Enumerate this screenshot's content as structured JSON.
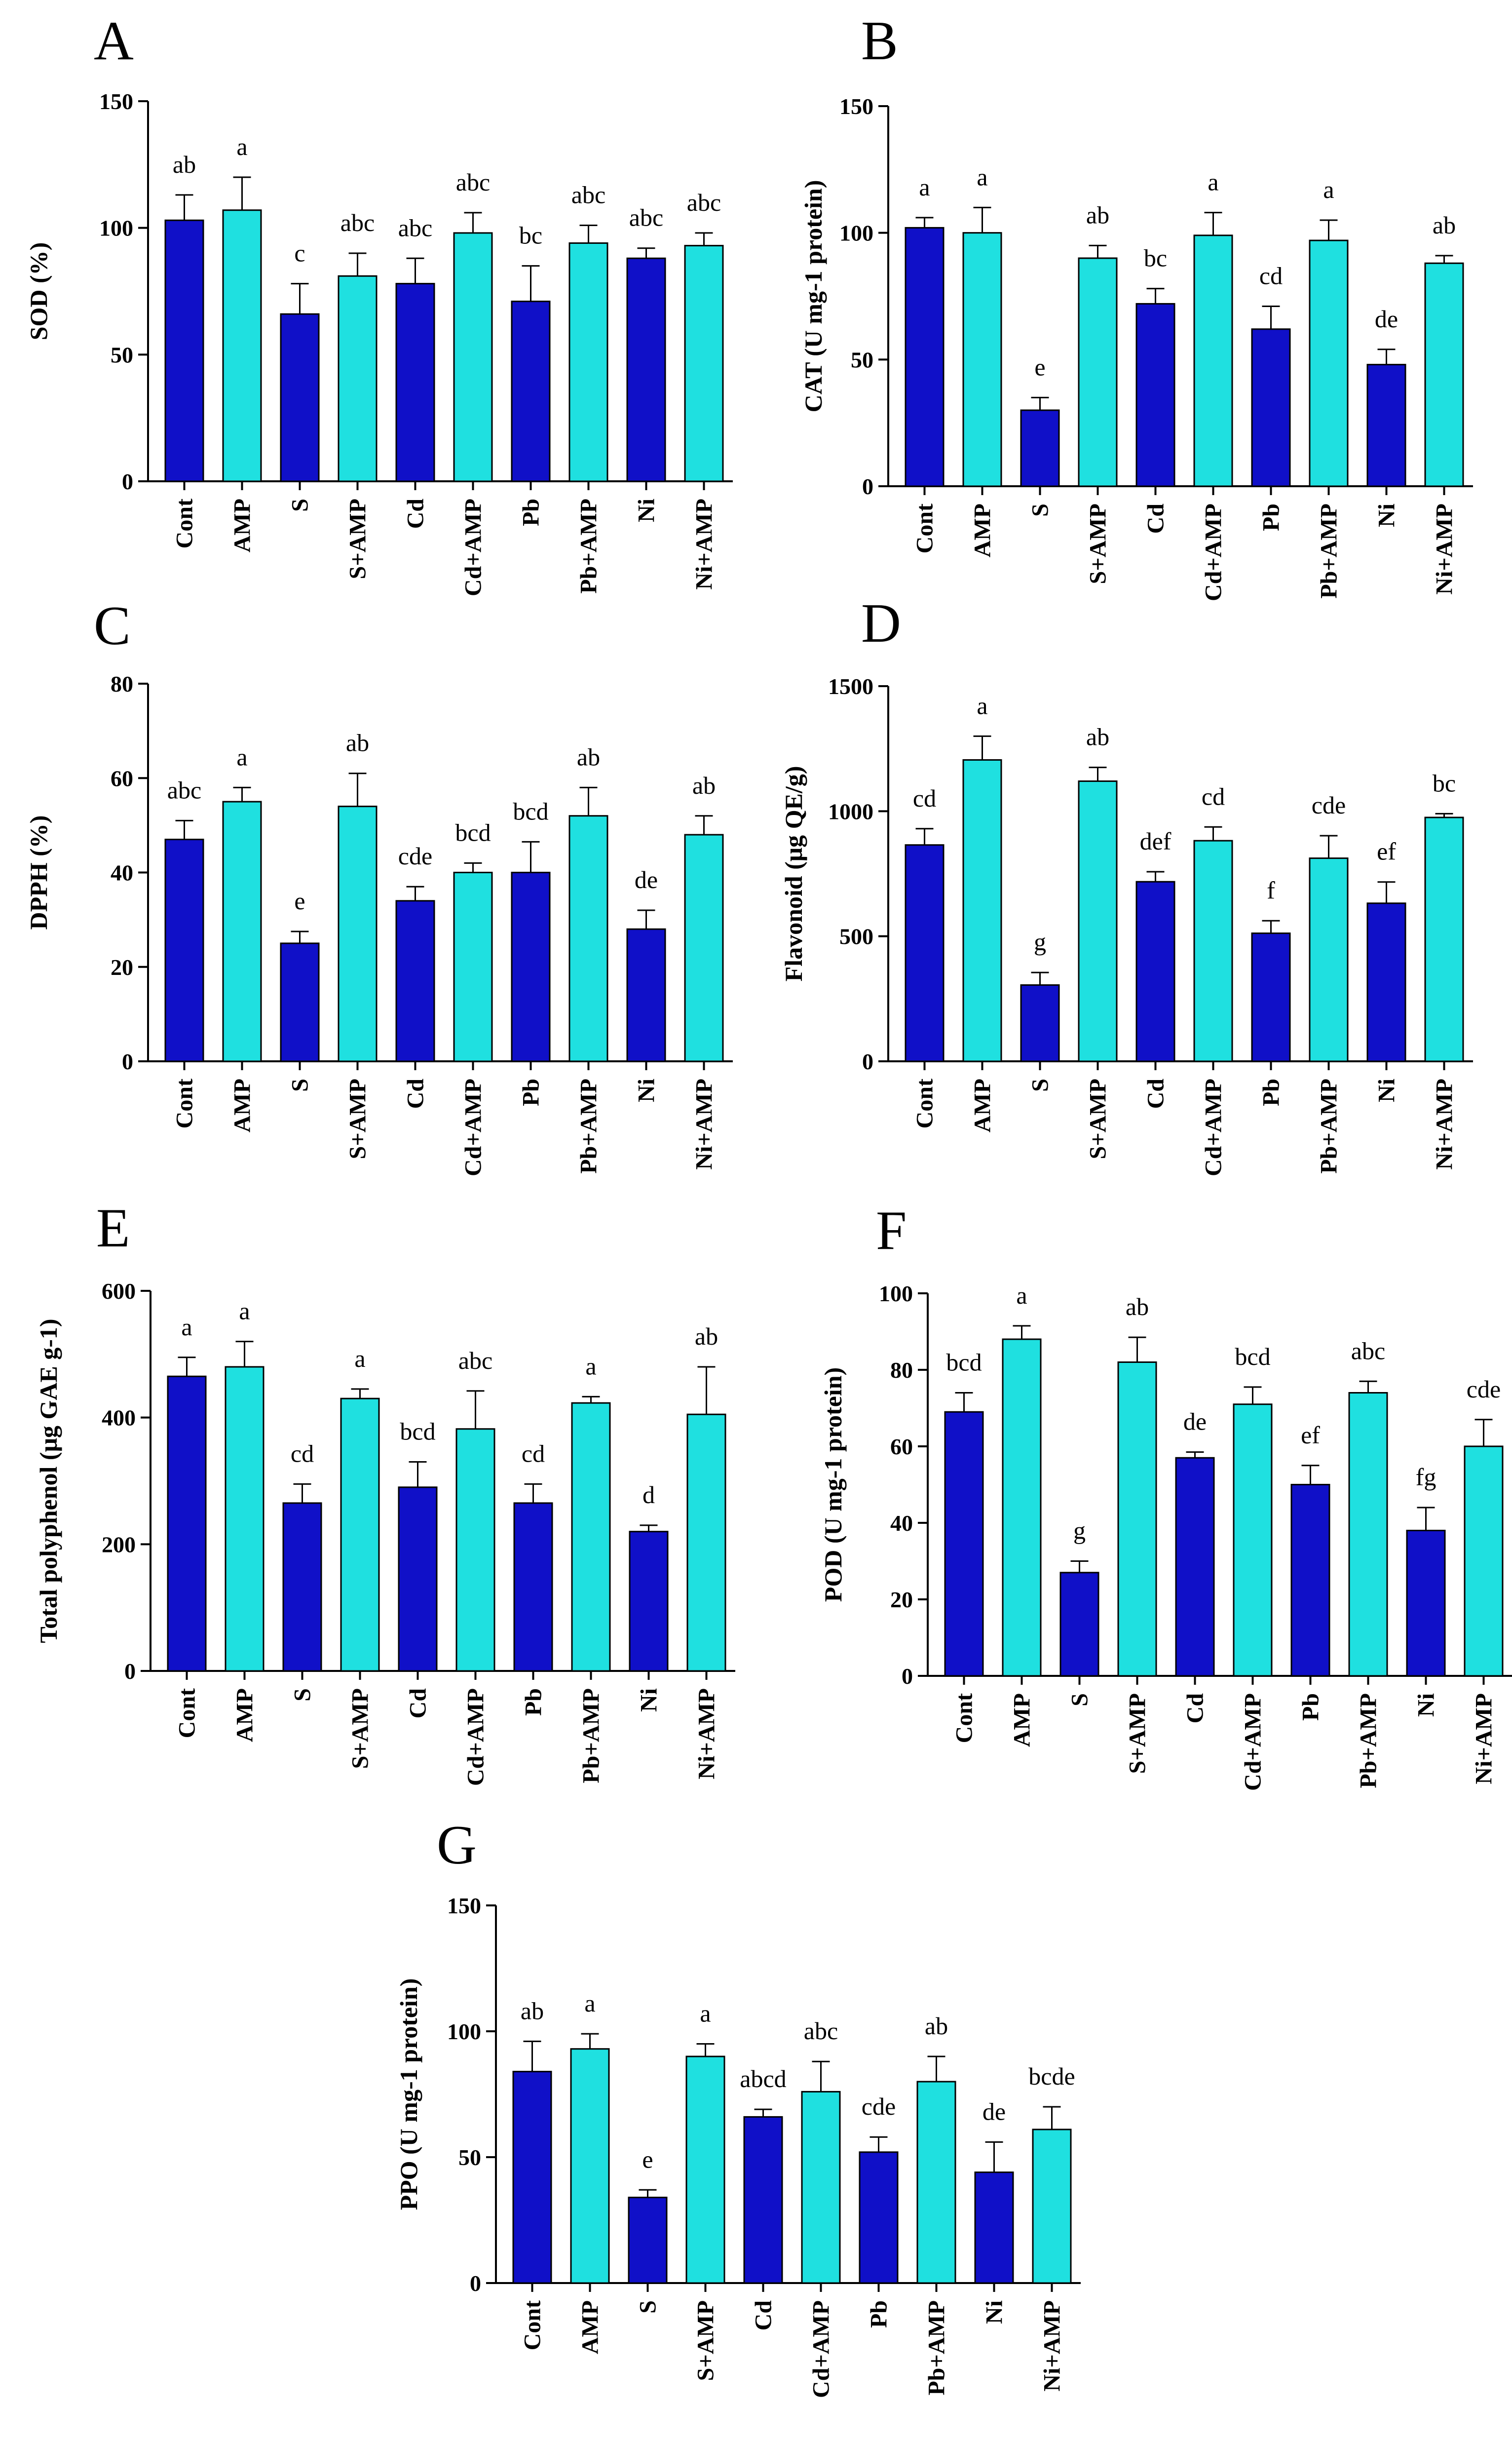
{
  "chart_data": [
    {
      "panel": "A",
      "type": "bar",
      "title": "",
      "xlabel": "",
      "ylabel": "SOD (%)",
      "ylim": [
        0,
        150
      ],
      "yticks": [
        0,
        50,
        100,
        150
      ],
      "categories": [
        "Cont",
        "AMP",
        "S",
        "S+AMP",
        "Cd",
        "Cd+AMP",
        "Pb",
        "Pb+AMP",
        "Ni",
        "Ni+AMP"
      ],
      "values": [
        103,
        107,
        66,
        81,
        78,
        98,
        71,
        94,
        88,
        93
      ],
      "errors": [
        10,
        13,
        12,
        9,
        10,
        8,
        14,
        7,
        4,
        5
      ],
      "letters": [
        "ab",
        "a",
        "c",
        "abc",
        "abc",
        "abc",
        "bc",
        "abc",
        "abc",
        "abc"
      ]
    },
    {
      "panel": "B",
      "type": "bar",
      "title": "",
      "xlabel": "",
      "ylabel": "CAT (U mg-1 protein)",
      "ylim": [
        0,
        150
      ],
      "yticks": [
        0,
        50,
        100,
        150
      ],
      "categories": [
        "Cont",
        "AMP",
        "S",
        "S+AMP",
        "Cd",
        "Cd+AMP",
        "Pb",
        "Pb+AMP",
        "Ni",
        "Ni+AMP"
      ],
      "values": [
        102,
        100,
        30,
        90,
        72,
        99,
        62,
        97,
        48,
        88
      ],
      "errors": [
        4,
        10,
        5,
        5,
        6,
        9,
        9,
        8,
        6,
        3
      ],
      "letters": [
        "a",
        "a",
        "e",
        "ab",
        "bc",
        "a",
        "cd",
        "a",
        "de",
        "ab"
      ]
    },
    {
      "panel": "C",
      "type": "bar",
      "title": "",
      "xlabel": "",
      "ylabel": "DPPH (%)",
      "ylim": [
        0,
        80
      ],
      "yticks": [
        0,
        20,
        40,
        60,
        80
      ],
      "categories": [
        "Cont",
        "AMP",
        "S",
        "S+AMP",
        "Cd",
        "Cd+AMP",
        "Pb",
        "Pb+AMP",
        "Ni",
        "Ni+AMP"
      ],
      "values": [
        47,
        55,
        25,
        54,
        34,
        40,
        40,
        52,
        28,
        48
      ],
      "errors": [
        4,
        3,
        2.5,
        7,
        3,
        2,
        6.5,
        6,
        4,
        4
      ],
      "letters": [
        "abc",
        "a",
        "e",
        "ab",
        "cde",
        "bcd",
        "bcd",
        "ab",
        "de",
        "ab"
      ]
    },
    {
      "panel": "D",
      "type": "bar",
      "title": "",
      "xlabel": "",
      "ylabel": "Flavonoid (μg QE/g)",
      "ylim": [
        0,
        1500
      ],
      "yticks": [
        0,
        500,
        1000,
        1500
      ],
      "categories": [
        "Cont",
        "AMP",
        "S",
        "S+AMP",
        "Cd",
        "Cd+AMP",
        "Pb",
        "Pb+AMP",
        "Ni",
        "Ni+AMP"
      ],
      "values": [
        865,
        1205,
        305,
        1120,
        718,
        882,
        512,
        812,
        632,
        975
      ],
      "errors": [
        65,
        95,
        50,
        55,
        40,
        55,
        50,
        90,
        85,
        15
      ],
      "letters": [
        "cd",
        "a",
        "g",
        "ab",
        "def",
        "cd",
        "f",
        "cde",
        "ef",
        "bc"
      ]
    },
    {
      "panel": "E",
      "type": "bar",
      "title": "",
      "xlabel": "",
      "ylabel": "Total polyphenol (μg GAE g-1)",
      "ylim": [
        0,
        600
      ],
      "yticks": [
        0,
        200,
        400,
        600
      ],
      "categories": [
        "Cont",
        "AMP",
        "S",
        "S+AMP",
        "Cd",
        "Cd+AMP",
        "Pb",
        "Pb+AMP",
        "Ni",
        "Ni+AMP"
      ],
      "values": [
        465,
        480,
        265,
        430,
        290,
        382,
        265,
        423,
        220,
        405
      ],
      "errors": [
        30,
        40,
        30,
        15,
        40,
        60,
        30,
        10,
        10,
        75
      ],
      "letters": [
        "a",
        "a",
        "cd",
        "a",
        "bcd",
        "abc",
        "cd",
        "a",
        "d",
        "ab"
      ]
    },
    {
      "panel": "F",
      "type": "bar",
      "title": "",
      "xlabel": "",
      "ylabel": "POD (U mg-1 protein)",
      "ylim": [
        0,
        100
      ],
      "yticks": [
        0,
        20,
        40,
        60,
        80,
        100
      ],
      "categories": [
        "Cont",
        "AMP",
        "S",
        "S+AMP",
        "Cd",
        "Cd+AMP",
        "Pb",
        "Pb+AMP",
        "Ni",
        "Ni+AMP"
      ],
      "values": [
        69,
        88,
        27,
        82,
        57,
        71,
        50,
        74,
        38,
        60
      ],
      "errors": [
        5,
        3.5,
        3,
        6.5,
        1.5,
        4.5,
        5,
        3,
        6,
        7
      ],
      "letters": [
        "bcd",
        "a",
        "g",
        "ab",
        "de",
        "bcd",
        "ef",
        "abc",
        "fg",
        "cde"
      ]
    },
    {
      "panel": "G",
      "type": "bar",
      "title": "",
      "xlabel": "",
      "ylabel": "PPO (U mg-1 protein)",
      "ylim": [
        0,
        150
      ],
      "yticks": [
        0,
        50,
        100,
        150
      ],
      "categories": [
        "Cont",
        "AMP",
        "S",
        "S+AMP",
        "Cd",
        "Cd+AMP",
        "Pb",
        "Pb+AMP",
        "Ni",
        "Ni+AMP"
      ],
      "values": [
        84,
        93,
        34,
        90,
        66,
        76,
        52,
        80,
        44,
        61
      ],
      "errors": [
        12,
        6,
        3,
        5,
        3,
        12,
        6,
        10,
        12,
        9
      ],
      "letters": [
        "ab",
        "a",
        "e",
        "a",
        "abcd",
        "abc",
        "cde",
        "ab",
        "de",
        "bcde"
      ]
    }
  ],
  "colors": {
    "dark_bar": "#1010c8",
    "light_bar": "#1fe0e0",
    "stroke": "#000000"
  }
}
